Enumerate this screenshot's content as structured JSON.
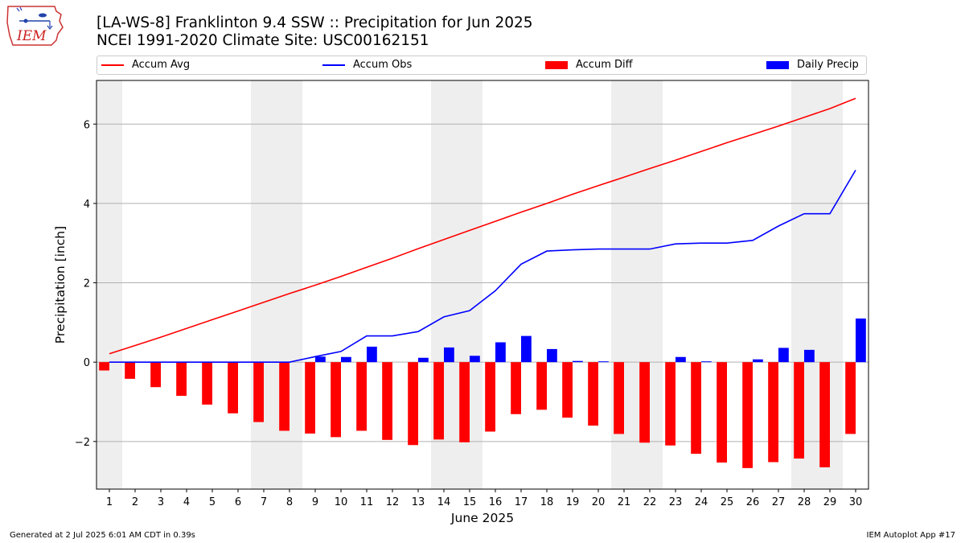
{
  "header": {
    "title_line1": "[LA-WS-8] Franklinton 9.4 SSW :: Precipitation for Jun 2025",
    "title_line2": "NCEI 1991-2020 Climate Site: USC00162151",
    "logo_text": "IEM"
  },
  "footer": {
    "left": "Generated at 2 Jul 2025 6:01 AM CDT in 0.39s",
    "right": "IEM Autoplot App #17"
  },
  "colors": {
    "avg": "#ff0000",
    "obs": "#0000ff",
    "diff": "#ff0000",
    "daily": "#0000ff",
    "weekend_band": "#eeeeee",
    "grid": "#b0b0b0"
  },
  "chart_data": {
    "type": "bar",
    "title": "[LA-WS-8] Franklinton 9.4 SSW :: Precipitation for Jun 2025",
    "subtitle": "NCEI 1991-2020 Climate Site: USC00162151",
    "xlabel": "June 2025",
    "ylabel": "Precipitation [inch]",
    "ylim": [
      -3.2,
      7.1
    ],
    "yticks": [
      6,
      4,
      2,
      0,
      -2
    ],
    "ytick_labels": [
      "6",
      "4",
      "2",
      "0",
      "−2"
    ],
    "grid": "horizontal",
    "legend_position": "top",
    "categories": [
      "1",
      "2",
      "3",
      "4",
      "5",
      "6",
      "7",
      "8",
      "9",
      "10",
      "11",
      "12",
      "13",
      "14",
      "15",
      "16",
      "17",
      "18",
      "19",
      "20",
      "21",
      "22",
      "23",
      "24",
      "25",
      "26",
      "27",
      "28",
      "29",
      "30"
    ],
    "weekend_days": [
      1,
      7,
      8,
      14,
      15,
      21,
      22,
      28,
      29
    ],
    "series": [
      {
        "name": "Accum Avg",
        "kind": "line",
        "values": [
          0.21,
          0.42,
          0.63,
          0.85,
          1.07,
          1.29,
          1.51,
          1.73,
          1.94,
          2.16,
          2.39,
          2.62,
          2.86,
          3.09,
          3.32,
          3.55,
          3.78,
          4.0,
          4.23,
          4.45,
          4.66,
          4.88,
          5.09,
          5.31,
          5.53,
          5.74,
          5.95,
          6.17,
          6.39,
          6.65
        ]
      },
      {
        "name": "Accum Obs",
        "kind": "line",
        "values": [
          0.0,
          0.0,
          0.0,
          0.0,
          0.0,
          0.0,
          0.0,
          0.0,
          0.14,
          0.27,
          0.66,
          0.66,
          0.77,
          1.14,
          1.3,
          1.8,
          2.47,
          2.8,
          2.83,
          2.85,
          2.85,
          2.85,
          2.98,
          3.0,
          3.0,
          3.07,
          3.43,
          3.74,
          3.74,
          4.84
        ]
      },
      {
        "name": "Accum Diff",
        "kind": "bar",
        "values": [
          -0.21,
          -0.42,
          -0.63,
          -0.85,
          -1.07,
          -1.29,
          -1.51,
          -1.73,
          -1.8,
          -1.89,
          -1.73,
          -1.96,
          -2.09,
          -1.95,
          -2.02,
          -1.75,
          -1.31,
          -1.2,
          -1.4,
          -1.6,
          -1.81,
          -2.03,
          -2.1,
          -2.31,
          -2.53,
          -2.67,
          -2.52,
          -2.43,
          -2.65,
          -1.81
        ]
      },
      {
        "name": "Daily Precip",
        "kind": "bar",
        "values": [
          0,
          0,
          0,
          0,
          0,
          0,
          0,
          0,
          0.14,
          0.13,
          0.39,
          0,
          0.11,
          0.37,
          0.16,
          0.5,
          0.66,
          0.33,
          0.03,
          0.02,
          0,
          0,
          0.13,
          0.02,
          0,
          0.07,
          0.36,
          0.31,
          0,
          1.1
        ]
      }
    ]
  }
}
